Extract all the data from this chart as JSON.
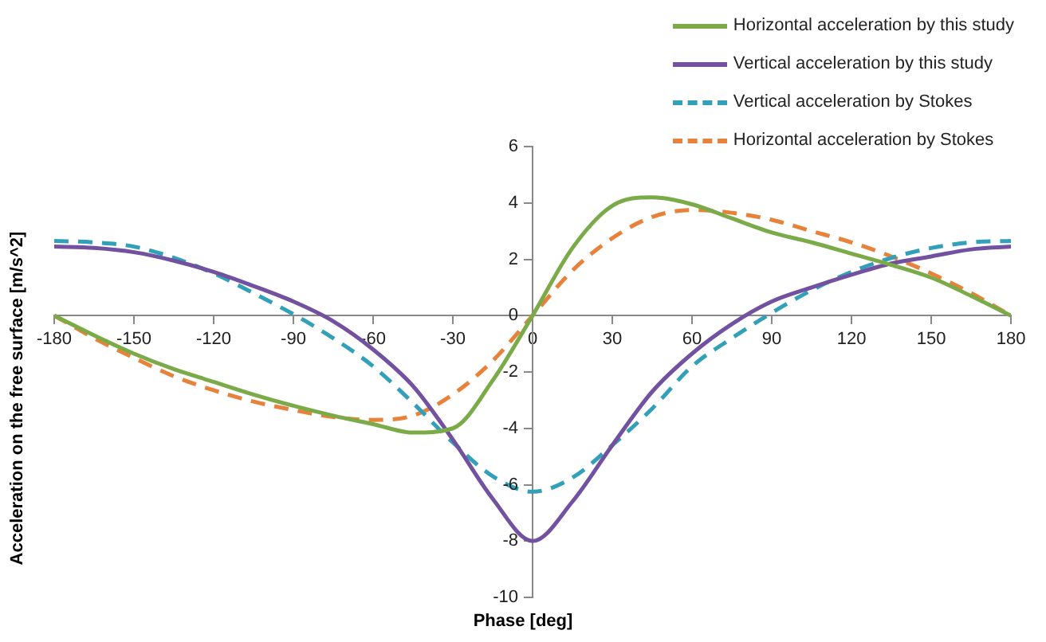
{
  "chart_data": {
    "type": "line",
    "xlabel": "Phase [deg]",
    "ylabel": "Acceleration on the free surface  [m/s^2]",
    "x": [
      -180,
      -165,
      -150,
      -135,
      -120,
      -105,
      -90,
      -75,
      -60,
      -45,
      -30,
      -15,
      0,
      15,
      30,
      45,
      60,
      75,
      90,
      105,
      120,
      135,
      150,
      165,
      180
    ],
    "series": [
      {
        "name": "Horizontal acceleration by this study",
        "color": "#7aab48",
        "line_style": "solid",
        "values": [
          0,
          -0.7,
          -1.35,
          -1.9,
          -2.35,
          -2.8,
          -3.2,
          -3.55,
          -3.85,
          -4.15,
          -4.0,
          -2.3,
          0,
          2.4,
          3.9,
          4.2,
          3.95,
          3.45,
          2.95,
          2.6,
          2.2,
          1.8,
          1.35,
          0.7,
          0
        ]
      },
      {
        "name": "Vertical acceleration by this study",
        "color": "#7252a0",
        "line_style": "solid",
        "values": [
          2.45,
          2.4,
          2.25,
          1.95,
          1.55,
          1.05,
          0.5,
          -0.2,
          -1.2,
          -2.5,
          -4.4,
          -6.5,
          -8.0,
          -6.6,
          -4.6,
          -2.7,
          -1.35,
          -0.3,
          0.5,
          1.0,
          1.45,
          1.85,
          2.1,
          2.35,
          2.45
        ]
      },
      {
        "name": "Vertical acceleration by Stokes",
        "color": "#31a0b8",
        "line_style": "dashed",
        "values": [
          2.65,
          2.6,
          2.45,
          2.05,
          1.5,
          0.8,
          0.05,
          -0.8,
          -1.8,
          -3.1,
          -4.5,
          -5.7,
          -6.25,
          -5.75,
          -4.6,
          -3.3,
          -1.8,
          -0.8,
          0.1,
          0.9,
          1.55,
          2.05,
          2.4,
          2.6,
          2.65
        ]
      },
      {
        "name": "Horizontal acceleration by Stokes",
        "color": "#e8823a",
        "line_style": "dashed",
        "values": [
          0,
          -0.8,
          -1.5,
          -2.15,
          -2.65,
          -3.05,
          -3.35,
          -3.6,
          -3.7,
          -3.55,
          -2.8,
          -1.6,
          0,
          1.6,
          2.75,
          3.5,
          3.75,
          3.65,
          3.4,
          3.0,
          2.6,
          2.1,
          1.5,
          0.8,
          0
        ]
      }
    ],
    "xlim": [
      -180,
      180
    ],
    "xticks": [
      -180,
      -150,
      -120,
      -90,
      -60,
      -30,
      0,
      30,
      60,
      90,
      120,
      150,
      180
    ],
    "ylim": [
      -10,
      6
    ],
    "yticks": [
      -10,
      -8,
      -6,
      -4,
      -2,
      0,
      2,
      4,
      6
    ],
    "grid": false,
    "legend": "top right",
    "marker": "none"
  }
}
